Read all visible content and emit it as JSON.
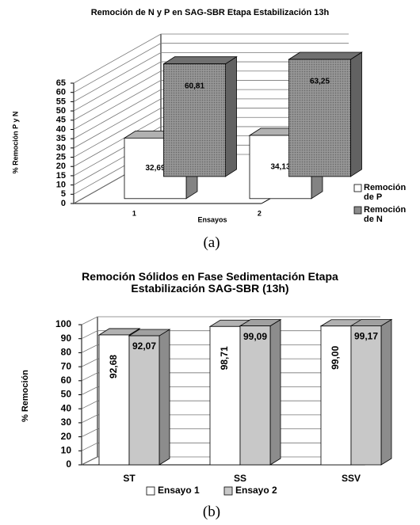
{
  "chart_data": [
    {
      "type": "bar3d",
      "title": "Remoción de N y P en SAG-SBR Etapa Estabilización 13h",
      "y_label": "% Remoción P y N",
      "x_label": "Ensayos",
      "caption": "(a)",
      "categories": [
        "1",
        "2"
      ],
      "series": [
        {
          "name": "Remoción de P",
          "color": "#ffffff",
          "values": [
            32.69,
            34.13
          ],
          "value_labels": [
            "32,69",
            "34,13"
          ]
        },
        {
          "name": "Remoción de N",
          "color": "#8c8c8c",
          "values": [
            60.81,
            63.25
          ],
          "value_labels": [
            "60,81",
            "63,25"
          ]
        }
      ],
      "ylim": [
        0,
        65
      ],
      "yticks": [
        0,
        5,
        10,
        15,
        20,
        25,
        30,
        35,
        40,
        45,
        50,
        55,
        60,
        65
      ],
      "grid": true,
      "legend": "right"
    },
    {
      "type": "bar3d",
      "title": "Remoción Sólidos en Fase Sedimentación Etapa Estabilización SAG-SBR  (13h)",
      "y_label": "% Remoción",
      "caption": "(b)",
      "categories": [
        "ST",
        "SS",
        "SSV"
      ],
      "series": [
        {
          "name": "Ensayo 1",
          "color": "#ffffff",
          "values": [
            92.68,
            98.71,
            99.0
          ],
          "value_labels": [
            "92,68",
            "98,71",
            "99,00"
          ]
        },
        {
          "name": "Ensayo 2",
          "color": "#c8c8c8",
          "values": [
            92.07,
            99.09,
            99.17
          ],
          "value_labels": [
            "92,07",
            "99,09",
            "99,17"
          ]
        }
      ],
      "ylim": [
        0,
        100
      ],
      "yticks": [
        0,
        10,
        20,
        30,
        40,
        50,
        60,
        70,
        80,
        90,
        100
      ],
      "grid": true,
      "legend": "bottom"
    }
  ]
}
